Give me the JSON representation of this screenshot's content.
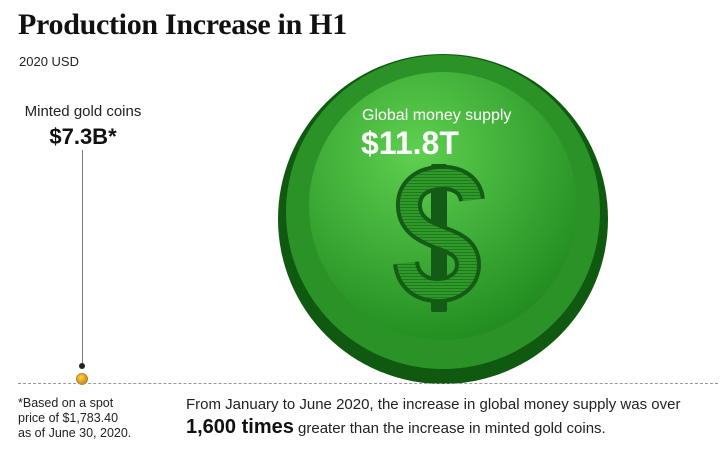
{
  "title": "Production Increase in H1",
  "subtitle": "2020 USD",
  "colors": {
    "coin_outer": "#0f5a10",
    "coin_rim": "#2a9226",
    "coin_face_light": "#5fd050",
    "coin_face_dark": "#1f8a1f",
    "gold_coin": "#e2a012",
    "leader_line": "#7a7a7a",
    "baseline": "#999999"
  },
  "icons": {
    "big_coin_symbol": "dollar-sign-icon",
    "small_coin": "gold-coin-icon"
  },
  "chart_data": {
    "type": "area",
    "title": "Production Increase in H1",
    "subtitle": "2020 USD",
    "shape": "proportional circles",
    "series": [
      {
        "name": "Minted gold coins",
        "value": 7.3,
        "value_label": "$7.3B*",
        "unit": "billion USD"
      },
      {
        "name": "Global money supply",
        "value": 11800,
        "value_label": "$11.8T",
        "unit": "billion USD"
      }
    ],
    "ratio_text": "1,600 times"
  },
  "footnote": {
    "lines": [
      "*Based on a spot",
      "price of $1,783.40",
      "as of June 30, 2020."
    ]
  },
  "caption": {
    "line1": "From January to June 2020, the increase in global money supply was over",
    "emphasis": "1,600 times",
    "line2_rest": " greater than the increase in minted gold coins."
  }
}
